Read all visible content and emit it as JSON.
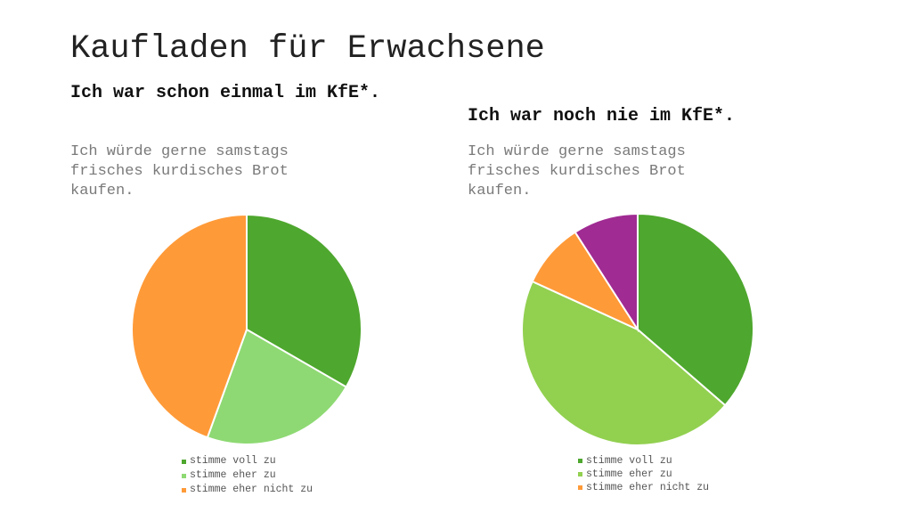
{
  "title": "Kaufladen für Erwachsene",
  "chart_data": [
    {
      "type": "pie",
      "title": "Ich war schon einmal im KfE*.",
      "subtitle": "Ich würde gerne samstags frisches kurdisches Brot kaufen.",
      "categories": [
        "stimme voll zu",
        "stimme eher zu",
        "stimme eher nicht zu"
      ],
      "values": [
        3,
        2,
        4
      ],
      "colors": [
        "#4EA72E",
        "#8ED973",
        "#FF9A38"
      ],
      "legend_position": "bottom"
    },
    {
      "type": "pie",
      "title": "Ich war noch nie im KfE*.",
      "subtitle": "Ich würde gerne samstags frisches kurdisches Brot kaufen.",
      "categories": [
        "stimme voll zu",
        "stimme eher zu",
        "stimme eher nicht zu",
        ""
      ],
      "values": [
        4,
        5,
        1,
        1
      ],
      "colors": [
        "#4EA72E",
        "#92D050",
        "#FF9A38",
        "#A02B93"
      ],
      "legend_position": "bottom"
    }
  ]
}
